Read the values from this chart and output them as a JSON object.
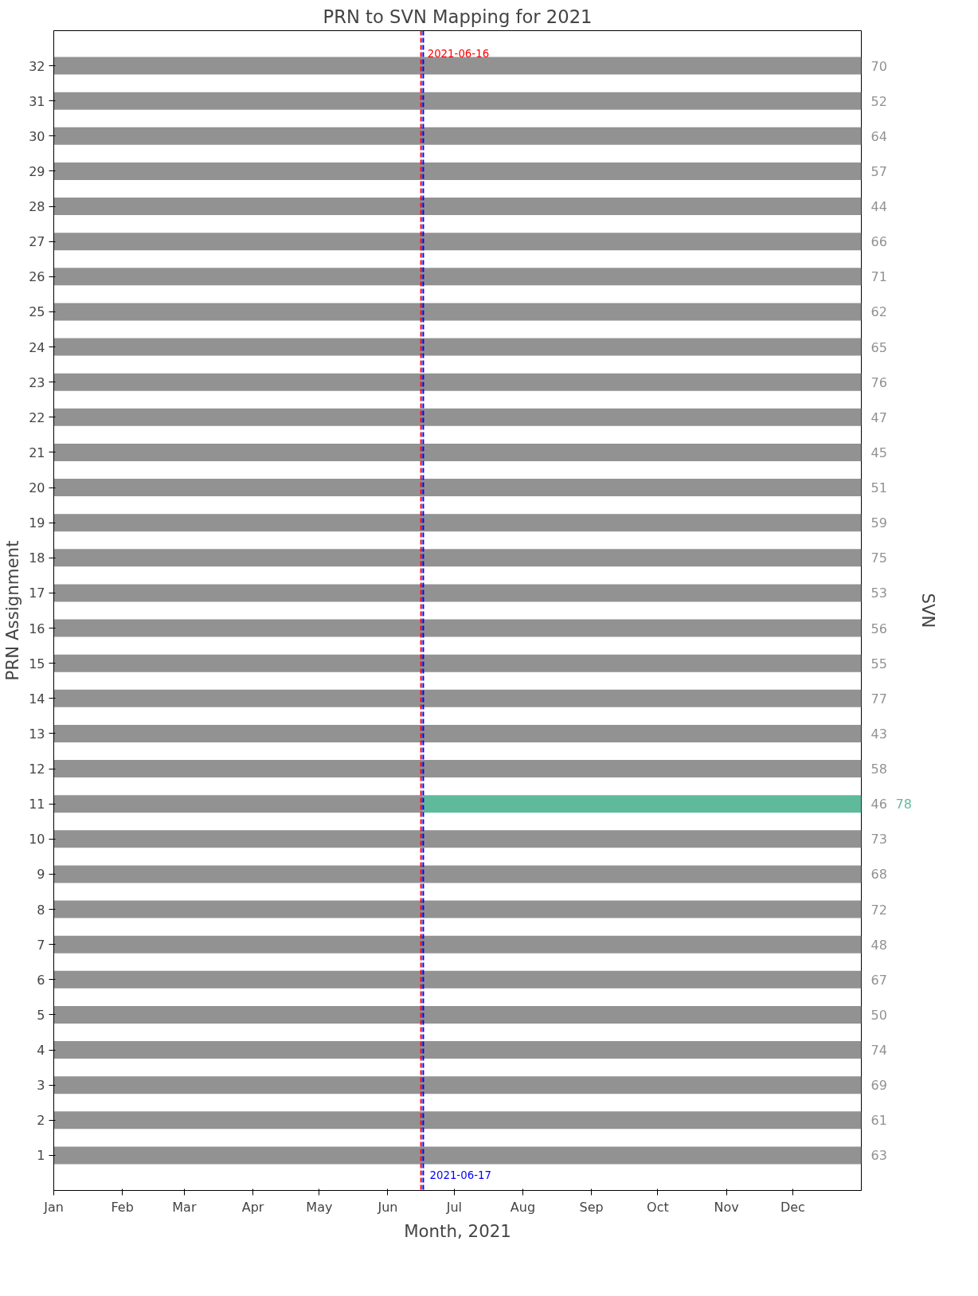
{
  "chart_data": {
    "type": "line",
    "title": "PRN to SVN Mapping for 2021",
    "xlabel": "Month, 2021",
    "ylabel": "PRN Assignment",
    "y2label": "SVN",
    "series": [
      {
        "color": "#929292",
        "x": [
          "2021-01-01",
          "2022-01-01"
        ],
        "values": [
          32,
          32
        ]
      },
      {
        "color": "#929292",
        "x": [
          "2021-01-01",
          "2022-01-01"
        ],
        "values": [
          31,
          31
        ]
      },
      {
        "color": "#929292",
        "x": [
          "2021-01-01",
          "2022-01-01"
        ],
        "values": [
          30,
          30
        ]
      },
      {
        "color": "#929292",
        "x": [
          "2021-01-01",
          "2022-01-01"
        ],
        "values": [
          29,
          29
        ]
      },
      {
        "color": "#929292",
        "x": [
          "2021-01-01",
          "2022-01-01"
        ],
        "values": [
          28,
          28
        ]
      },
      {
        "color": "#929292",
        "x": [
          "2021-01-01",
          "2022-01-01"
        ],
        "values": [
          27,
          27
        ]
      },
      {
        "color": "#929292",
        "x": [
          "2021-01-01",
          "2022-01-01"
        ],
        "values": [
          26,
          26
        ]
      },
      {
        "color": "#929292",
        "x": [
          "2021-01-01",
          "2022-01-01"
        ],
        "values": [
          25,
          25
        ]
      },
      {
        "color": "#929292",
        "x": [
          "2021-01-01",
          "2022-01-01"
        ],
        "values": [
          24,
          24
        ]
      },
      {
        "color": "#929292",
        "x": [
          "2021-01-01",
          "2022-01-01"
        ],
        "values": [
          23,
          23
        ]
      },
      {
        "color": "#929292",
        "x": [
          "2021-01-01",
          "2022-01-01"
        ],
        "values": [
          22,
          22
        ]
      },
      {
        "color": "#929292",
        "x": [
          "2021-01-01",
          "2022-01-01"
        ],
        "values": [
          21,
          21
        ]
      },
      {
        "color": "#929292",
        "x": [
          "2021-01-01",
          "2022-01-01"
        ],
        "values": [
          20,
          20
        ]
      },
      {
        "color": "#929292",
        "x": [
          "2021-01-01",
          "2022-01-01"
        ],
        "values": [
          19,
          19
        ]
      },
      {
        "color": "#929292",
        "x": [
          "2021-01-01",
          "2022-01-01"
        ],
        "values": [
          18,
          18
        ]
      },
      {
        "color": "#929292",
        "x": [
          "2021-01-01",
          "2022-01-01"
        ],
        "values": [
          17,
          17
        ]
      },
      {
        "color": "#929292",
        "x": [
          "2021-01-01",
          "2022-01-01"
        ],
        "values": [
          16,
          16
        ]
      },
      {
        "color": "#929292",
        "x": [
          "2021-01-01",
          "2022-01-01"
        ],
        "values": [
          15,
          15
        ]
      },
      {
        "color": "#929292",
        "x": [
          "2021-01-01",
          "2022-01-01"
        ],
        "values": [
          14,
          14
        ]
      },
      {
        "color": "#929292",
        "x": [
          "2021-01-01",
          "2022-01-01"
        ],
        "values": [
          13,
          13
        ]
      },
      {
        "color": "#929292",
        "x": [
          "2021-01-01",
          "2022-01-01"
        ],
        "values": [
          12,
          12
        ]
      },
      {
        "color": "#929292",
        "x": [
          "2021-01-01",
          "2021-06-17"
        ],
        "values": [
          11,
          11
        ]
      },
      {
        "color": "#5fba9c",
        "x": [
          "2021-06-17",
          "2022-01-01"
        ],
        "values": [
          11,
          11
        ]
      },
      {
        "color": "#929292",
        "x": [
          "2021-01-01",
          "2022-01-01"
        ],
        "values": [
          10,
          10
        ]
      },
      {
        "color": "#929292",
        "x": [
          "2021-01-01",
          "2022-01-01"
        ],
        "values": [
          9,
          9
        ]
      },
      {
        "color": "#929292",
        "x": [
          "2021-01-01",
          "2022-01-01"
        ],
        "values": [
          8,
          8
        ]
      },
      {
        "color": "#929292",
        "x": [
          "2021-01-01",
          "2022-01-01"
        ],
        "values": [
          7,
          7
        ]
      },
      {
        "color": "#929292",
        "x": [
          "2021-01-01",
          "2022-01-01"
        ],
        "values": [
          6,
          6
        ]
      },
      {
        "color": "#929292",
        "x": [
          "2021-01-01",
          "2022-01-01"
        ],
        "values": [
          5,
          5
        ]
      },
      {
        "color": "#929292",
        "x": [
          "2021-01-01",
          "2022-01-01"
        ],
        "values": [
          4,
          4
        ]
      },
      {
        "color": "#929292",
        "x": [
          "2021-01-01",
          "2022-01-01"
        ],
        "values": [
          3,
          3
        ]
      },
      {
        "color": "#929292",
        "x": [
          "2021-01-01",
          "2022-01-01"
        ],
        "values": [
          2,
          2
        ]
      },
      {
        "color": "#929292",
        "x": [
          "2021-01-01",
          "2022-01-01"
        ],
        "values": [
          1,
          1
        ]
      }
    ],
    "xlim": [
      "2021-01-01",
      "2022-01-01"
    ],
    "xticks": [
      {
        "value": "2021-01-01",
        "label": "Jan"
      },
      {
        "value": "2021-02-01",
        "label": "Feb"
      },
      {
        "value": "2021-03-01",
        "label": "Mar"
      },
      {
        "value": "2021-04-01",
        "label": "Apr"
      },
      {
        "value": "2021-05-01",
        "label": "May"
      },
      {
        "value": "2021-06-01",
        "label": "Jun"
      },
      {
        "value": "2021-07-01",
        "label": "Jul"
      },
      {
        "value": "2021-08-01",
        "label": "Aug"
      },
      {
        "value": "2021-09-01",
        "label": "Sep"
      },
      {
        "value": "2021-10-01",
        "label": "Oct"
      },
      {
        "value": "2021-11-01",
        "label": "Nov"
      },
      {
        "value": "2021-12-01",
        "label": "Dec"
      }
    ],
    "ylim": [
      0,
      33
    ],
    "yticks": [
      1,
      2,
      3,
      4,
      5,
      6,
      7,
      8,
      9,
      10,
      11,
      12,
      13,
      14,
      15,
      16,
      17,
      18,
      19,
      20,
      21,
      22,
      23,
      24,
      25,
      26,
      27,
      28,
      29,
      30,
      31,
      32
    ],
    "ref_lines": [
      {
        "axis": "x",
        "value": "2021-06-16",
        "label": "2021-06-16",
        "color": "#ff0000",
        "line_style": "dashed"
      },
      {
        "axis": "x",
        "value": "2021-06-17",
        "label": "2021-06-17",
        "color": "#0000ff",
        "line_style": "dashed"
      }
    ],
    "annotations": [
      {
        "text": "70",
        "x": "2022-01-01",
        "y": 32
      },
      {
        "text": "52",
        "x": "2022-01-01",
        "y": 31
      },
      {
        "text": "64",
        "x": "2022-01-01",
        "y": 30
      },
      {
        "text": "57",
        "x": "2022-01-01",
        "y": 29
      },
      {
        "text": "44",
        "x": "2022-01-01",
        "y": 28
      },
      {
        "text": "66",
        "x": "2022-01-01",
        "y": 27
      },
      {
        "text": "71",
        "x": "2022-01-01",
        "y": 26
      },
      {
        "text": "62",
        "x": "2022-01-01",
        "y": 25
      },
      {
        "text": "65",
        "x": "2022-01-01",
        "y": 24
      },
      {
        "text": "76",
        "x": "2022-01-01",
        "y": 23
      },
      {
        "text": "47",
        "x": "2022-01-01",
        "y": 22
      },
      {
        "text": "45",
        "x": "2022-01-01",
        "y": 21
      },
      {
        "text": "51",
        "x": "2022-01-01",
        "y": 20
      },
      {
        "text": "59",
        "x": "2022-01-01",
        "y": 19
      },
      {
        "text": "75",
        "x": "2022-01-01",
        "y": 18
      },
      {
        "text": "53",
        "x": "2022-01-01",
        "y": 17
      },
      {
        "text": "56",
        "x": "2022-01-01",
        "y": 16
      },
      {
        "text": "55",
        "x": "2022-01-01",
        "y": 15
      },
      {
        "text": "77",
        "x": "2022-01-01",
        "y": 14
      },
      {
        "text": "43",
        "x": "2022-01-01",
        "y": 13
      },
      {
        "text": "58",
        "x": "2022-01-01",
        "y": 12
      },
      {
        "text": "46",
        "x": "2022-01-01",
        "y": 11
      },
      {
        "text": "78",
        "x": "2022-01-01",
        "y": 11
      },
      {
        "text": "73",
        "x": "2022-01-01",
        "y": 10
      },
      {
        "text": "68",
        "x": "2022-01-01",
        "y": 9
      },
      {
        "text": "72",
        "x": "2022-01-01",
        "y": 8
      },
      {
        "text": "48",
        "x": "2022-01-01",
        "y": 7
      },
      {
        "text": "67",
        "x": "2022-01-01",
        "y": 6
      },
      {
        "text": "50",
        "x": "2022-01-01",
        "y": 5
      },
      {
        "text": "74",
        "x": "2022-01-01",
        "y": 4
      },
      {
        "text": "69",
        "x": "2022-01-01",
        "y": 3
      },
      {
        "text": "61",
        "x": "2022-01-01",
        "y": 2
      },
      {
        "text": "63",
        "x": "2022-01-01",
        "y": 1
      }
    ],
    "grid": false
  }
}
